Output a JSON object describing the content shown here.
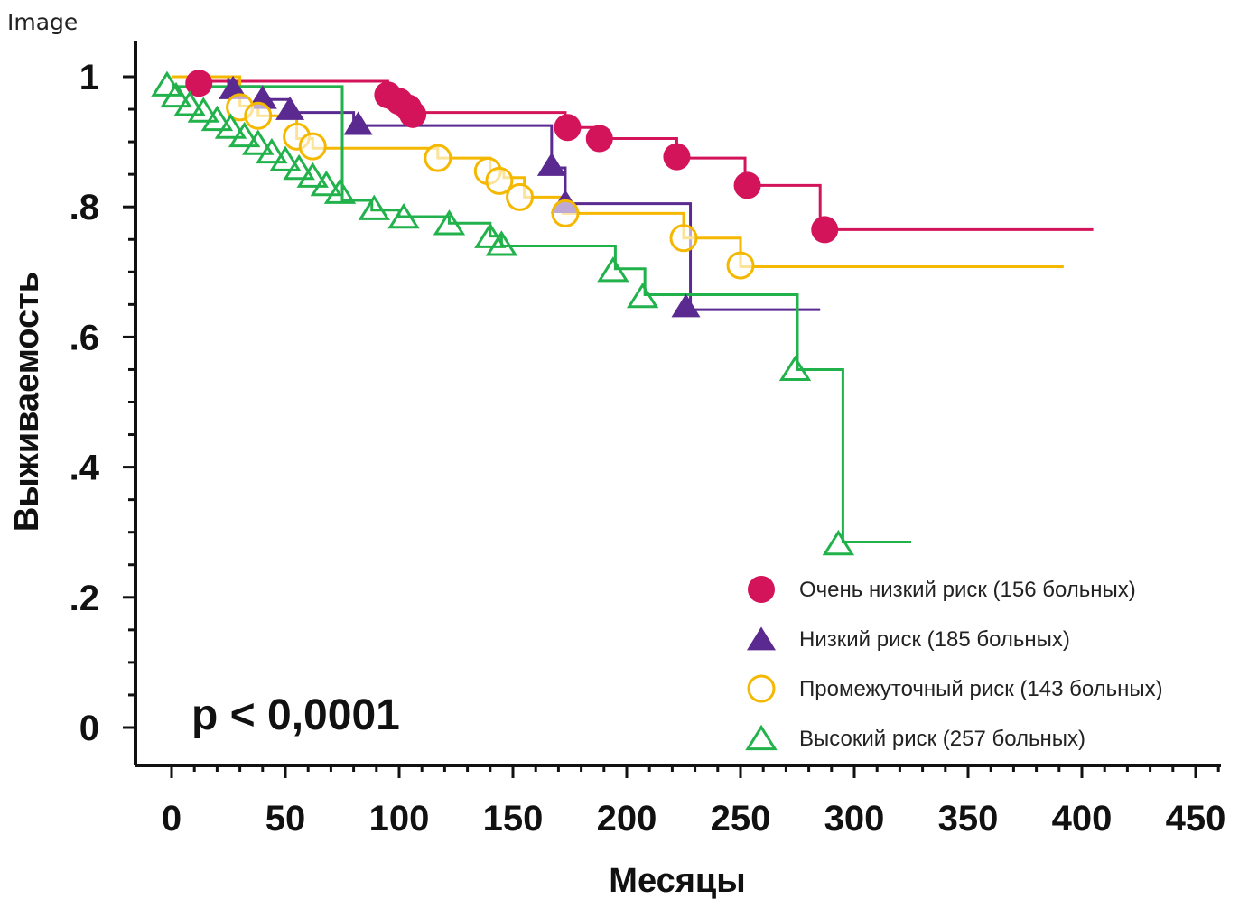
{
  "header": {
    "label": "Image"
  },
  "chart_data": {
    "type": "line",
    "title": "",
    "xlabel": "Месяцы",
    "ylabel": "Выживаемость",
    "xlim": [
      -15,
      465
    ],
    "ylim": [
      -0.04,
      1.06
    ],
    "xticks": [
      0,
      50,
      100,
      150,
      200,
      250,
      300,
      350,
      400,
      450
    ],
    "xtick_labels": [
      "0",
      "50",
      "100",
      "150",
      "200",
      "250",
      "300",
      "350",
      "400",
      "450"
    ],
    "yticks": [
      0,
      0.2,
      0.4,
      0.6,
      0.8,
      1.0
    ],
    "ytick_labels": [
      "0",
      ".2",
      ".4",
      ".6",
      ".8",
      "1"
    ],
    "annotation": "p < 0,0001",
    "legend_position": "bottom-right",
    "series": [
      {
        "name": "Очень низкий риск (156 больных)",
        "color": "#d4145a",
        "marker": "filled-circle",
        "steps": [
          [
            0,
            1.0
          ],
          [
            12,
            0.993
          ],
          [
            95,
            0.975
          ],
          [
            100,
            0.965
          ],
          [
            103,
            0.955
          ],
          [
            106,
            0.945
          ],
          [
            173,
            0.922
          ],
          [
            188,
            0.905
          ],
          [
            222,
            0.875
          ],
          [
            252,
            0.833
          ],
          [
            285,
            0.765
          ],
          [
            405,
            0.765
          ]
        ],
        "censored": [
          [
            12,
            0.99
          ],
          [
            95,
            0.972
          ],
          [
            100,
            0.962
          ],
          [
            104,
            0.952
          ],
          [
            106,
            0.942
          ],
          [
            174,
            0.922
          ],
          [
            188,
            0.905
          ],
          [
            222,
            0.877
          ],
          [
            253,
            0.833
          ],
          [
            287,
            0.765
          ]
        ]
      },
      {
        "name": "Низкий риск (185 больных)",
        "color": "#5b2a91",
        "marker": "filled-triangle",
        "steps": [
          [
            0,
            1.0
          ],
          [
            25,
            0.985
          ],
          [
            40,
            0.965
          ],
          [
            52,
            0.945
          ],
          [
            80,
            0.925
          ],
          [
            167,
            0.86
          ],
          [
            173,
            0.805
          ],
          [
            228,
            0.642
          ],
          [
            285,
            0.642
          ]
        ],
        "censored": [
          [
            27,
            0.98
          ],
          [
            40,
            0.965
          ],
          [
            52,
            0.948
          ],
          [
            82,
            0.925
          ],
          [
            167,
            0.862
          ],
          [
            173,
            0.805
          ],
          [
            226,
            0.645
          ]
        ]
      },
      {
        "name": "Промежуточный риск (143 больных)",
        "color": "#f5b800",
        "marker": "open-circle",
        "steps": [
          [
            0,
            1.0
          ],
          [
            30,
            0.955
          ],
          [
            38,
            0.94
          ],
          [
            55,
            0.905
          ],
          [
            62,
            0.89
          ],
          [
            117,
            0.875
          ],
          [
            140,
            0.855
          ],
          [
            146,
            0.845
          ],
          [
            155,
            0.815
          ],
          [
            172,
            0.79
          ],
          [
            225,
            0.752
          ],
          [
            250,
            0.708
          ],
          [
            392,
            0.708
          ]
        ],
        "censored": [
          [
            30,
            0.953
          ],
          [
            38,
            0.94
          ],
          [
            55,
            0.908
          ],
          [
            62,
            0.893
          ],
          [
            117,
            0.875
          ],
          [
            139,
            0.855
          ],
          [
            144,
            0.84
          ],
          [
            153,
            0.815
          ],
          [
            173,
            0.79
          ],
          [
            225,
            0.752
          ],
          [
            250,
            0.71
          ]
        ]
      },
      {
        "name": "Высокий риск (257 больных)",
        "color": "#22b24c",
        "marker": "open-triangle",
        "steps": [
          [
            0,
            0.985
          ],
          [
            75,
            0.81
          ],
          [
            88,
            0.795
          ],
          [
            100,
            0.785
          ],
          [
            122,
            0.775
          ],
          [
            140,
            0.755
          ],
          [
            145,
            0.74
          ],
          [
            195,
            0.705
          ],
          [
            208,
            0.665
          ],
          [
            275,
            0.55
          ],
          [
            295,
            0.285
          ],
          [
            325,
            0.285
          ]
        ],
        "censored": [
          [
            -2,
            0.985
          ],
          [
            2,
            0.968
          ],
          [
            8,
            0.955
          ],
          [
            14,
            0.945
          ],
          [
            20,
            0.932
          ],
          [
            26,
            0.92
          ],
          [
            32,
            0.907
          ],
          [
            38,
            0.895
          ],
          [
            44,
            0.882
          ],
          [
            50,
            0.87
          ],
          [
            56,
            0.857
          ],
          [
            62,
            0.845
          ],
          [
            68,
            0.832
          ],
          [
            74,
            0.82
          ],
          [
            89,
            0.795
          ],
          [
            102,
            0.782
          ],
          [
            122,
            0.772
          ],
          [
            140,
            0.752
          ],
          [
            145,
            0.74
          ],
          [
            194,
            0.7
          ],
          [
            207,
            0.66
          ],
          [
            274,
            0.548
          ],
          [
            293,
            0.28
          ]
        ]
      }
    ]
  }
}
